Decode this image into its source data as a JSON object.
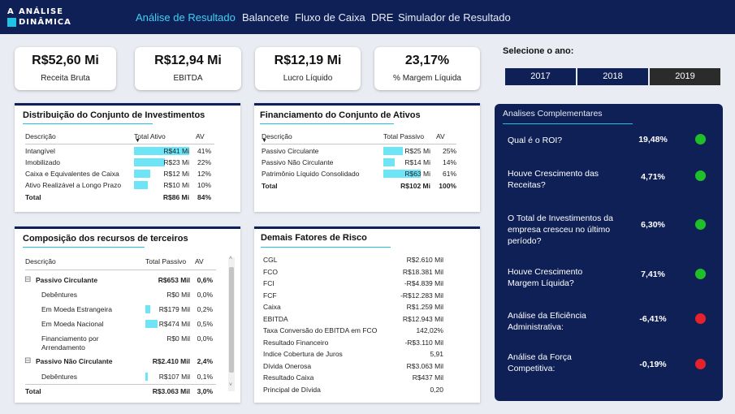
{
  "logo": {
    "line1": "ANÁLISE",
    "line2": "DINÂMICA",
    "letter_a": "A",
    "letter_d": "D"
  },
  "nav": [
    "Análise de Resultado",
    "Balancete",
    "Fluxo de Caixa",
    "DRE",
    "Simulador de Resultado"
  ],
  "kpis": [
    {
      "value": "R$52,60 Mi",
      "label": "Receita Bruta"
    },
    {
      "value": "R$12,94 Mi",
      "label": "EBITDA"
    },
    {
      "value": "R$12,19 Mi",
      "label": "Lucro Líquido"
    },
    {
      "value": "23,17%",
      "label": "% Margem Líquida"
    }
  ],
  "year_selector": {
    "title": "Selecione o ano:",
    "years": [
      "2017",
      "2018",
      "2019"
    ],
    "selected": "2019"
  },
  "investimentos": {
    "title": "Distribuição do Conjunto de Investimentos",
    "headers": [
      "Descrição",
      "Total Ativo",
      "AV"
    ],
    "rows": [
      {
        "desc": "Intangível",
        "value": "R$41 Mi",
        "av": "41%",
        "pct": 41
      },
      {
        "desc": "Imobilizado",
        "value": "R$23 Mi",
        "av": "22%",
        "pct": 22
      },
      {
        "desc": "Caixa e Equivalentes de Caixa",
        "value": "R$12 Mi",
        "av": "12%",
        "pct": 12
      },
      {
        "desc": "Ativo Realizável a Longo Prazo",
        "value": "R$10 Mi",
        "av": "10%",
        "pct": 10
      }
    ],
    "total": {
      "desc": "Total",
      "value": "R$86 Mi",
      "av": "84%"
    }
  },
  "financiamento": {
    "title": "Financiamento  do Conjunto de Ativos",
    "headers": [
      "Descrição",
      "Total Passivo",
      "AV"
    ],
    "rows": [
      {
        "desc": "Passivo Circulante",
        "value": "R$25 Mi",
        "av": "25%",
        "pct": 25
      },
      {
        "desc": "Passivo Não Circulante",
        "value": "R$14 Mi",
        "av": "14%",
        "pct": 14
      },
      {
        "desc": "Patrimônio Líquido Consolidado",
        "value": "R$63 Mi",
        "av": "61%",
        "pct": 61
      }
    ],
    "total": {
      "desc": "Total",
      "value": "R$102 Mi",
      "av": "100%"
    }
  },
  "composicao": {
    "title": "Composição dos recursos de terceiros",
    "headers": [
      "Descrição",
      "Total Passivo",
      "AV"
    ],
    "rows": [
      {
        "desc": "Passivo Circulante",
        "value": "R$653 Mil",
        "av": "0,6%",
        "level": 0,
        "pct": 0
      },
      {
        "desc": "Debêntures",
        "value": "R$0 Mil",
        "av": "0,0%",
        "level": 1,
        "pct": 0
      },
      {
        "desc": "Em Moeda Estrangeira",
        "value": "R$179 Mil",
        "av": "0,2%",
        "level": 1,
        "pct": 8
      },
      {
        "desc": "Em Moeda Nacional",
        "value": "R$474 Mil",
        "av": "0,5%",
        "level": 1,
        "pct": 20
      },
      {
        "desc": "Financiamento por Arrendamento",
        "value": "R$0 Mil",
        "av": "0,0%",
        "level": 1,
        "pct": 0
      },
      {
        "desc": "Passivo Não Circulante",
        "value": "R$2.410 Mil",
        "av": "2,4%",
        "level": 0,
        "pct": 0
      },
      {
        "desc": "Debêntures",
        "value": "R$107 Mil",
        "av": "0,1%",
        "level": 1,
        "pct": 5
      }
    ],
    "total": {
      "desc": "Total",
      "value": "R$3.063 Mil",
      "av": "3,0%"
    },
    "expand_symbol": "⊟"
  },
  "riscos": {
    "title": "Demais Fatores de Risco",
    "rows": [
      {
        "label": "CGL",
        "value": "R$2.610 Mil"
      },
      {
        "label": "FCO",
        "value": "R$18.381 Mil"
      },
      {
        "label": "FCI",
        "value": "-R$4.839 Mil"
      },
      {
        "label": "FCF",
        "value": "-R$12.283 Mil"
      },
      {
        "label": "Caixa",
        "value": "R$1.259 Mil"
      },
      {
        "label": "EBITDA",
        "value": "R$12.943 Mil"
      },
      {
        "label": "Taxa Conversão do EBITDA em FCO",
        "value": "142,02%"
      },
      {
        "label": "Resultado Financeiro",
        "value": "-R$3.110 Mil"
      },
      {
        "label": "Indice Cobertura de Juros",
        "value": "5,91"
      },
      {
        "label": "Dívida Onerosa",
        "value": "R$3.063 Mil"
      },
      {
        "label": "Resultado Caixa",
        "value": "R$437 Mil"
      },
      {
        "label": "Principal de Dívida",
        "value": "0,20"
      }
    ]
  },
  "analises": {
    "title": "Analises Complementares",
    "items": [
      {
        "question": "Qual é o ROI?",
        "value": "19,48%",
        "status": "green"
      },
      {
        "question": "Houve Crescimento das Receitas?",
        "value": "4,71%",
        "status": "green"
      },
      {
        "question": "O Total de Investimentos da empresa cresceu no último período?",
        "value": "6,30%",
        "status": "green"
      },
      {
        "question": "Houve Crescimento Margem Líquida?",
        "value": "7,41%",
        "status": "green"
      },
      {
        "question": "Análise da Eficiência Administrativa:",
        "value": "-6,41%",
        "status": "red"
      },
      {
        "question": "Análise da Força Competitiva:",
        "value": "-0,19%",
        "status": "red"
      }
    ]
  },
  "colors": {
    "navy": "#0f2057",
    "accent": "#1ec3e6",
    "bar": "#6ee4f7",
    "green": "#1fbf2a",
    "red": "#e5222b"
  }
}
